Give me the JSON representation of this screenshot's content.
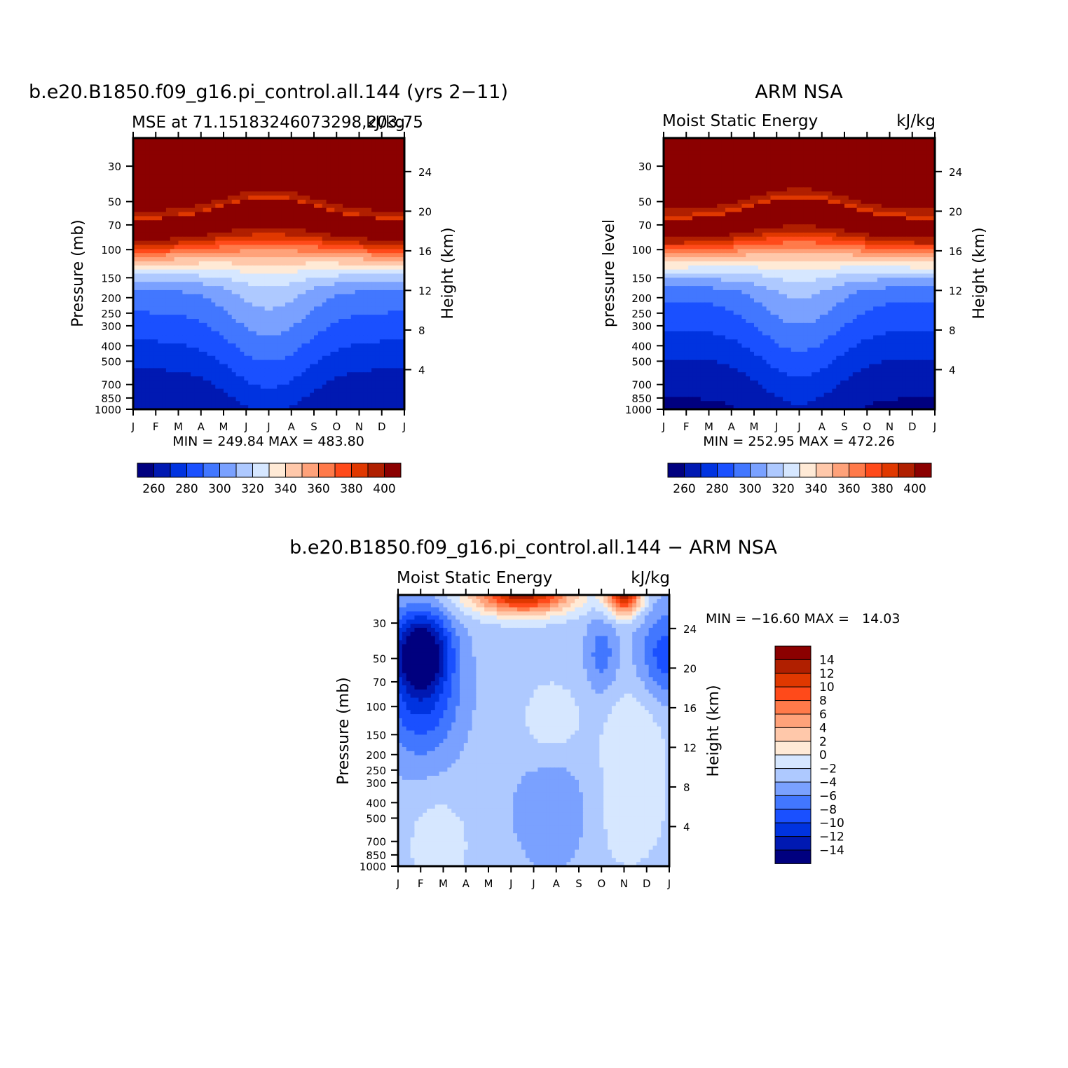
{
  "chart_data": [
    {
      "type": "contour",
      "title": "b.e20.B1850.f09_g16.pi_control.all.144 (yrs 2−11)",
      "left_subtitle": "MSE at 71.15183246073298,203.75",
      "right_subtitle": "kJ/kg",
      "ylabel": "Pressure (mb)",
      "ylabel_right": "Height (km)",
      "x_ticks": [
        "J",
        "F",
        "M",
        "A",
        "M",
        "J",
        "J",
        "A",
        "S",
        "O",
        "N",
        "D",
        "J"
      ],
      "y_ticks": [
        "30",
        "50",
        "70",
        "100",
        "150",
        "200",
        "250",
        "300",
        "400",
        "500",
        "700",
        "850",
        "1000"
      ],
      "y_right_ticks": [
        "24",
        "20",
        "16",
        "12",
        "8",
        "4"
      ],
      "stats": "MIN = 249.84 MAX = 483.80",
      "colorbar_labels": [
        "260",
        "280",
        "300",
        "320",
        "340",
        "360",
        "380",
        "400"
      ],
      "levels": [
        260,
        280,
        300,
        320,
        340,
        360,
        380,
        400
      ],
      "ylim_mb": [
        1000,
        20
      ]
    },
    {
      "type": "contour",
      "title": "ARM NSA",
      "left_subtitle": "Moist Static Energy",
      "right_subtitle": "kJ/kg",
      "ylabel": "pressure level",
      "ylabel_right": "Height (km)",
      "x_ticks": [
        "J",
        "F",
        "M",
        "A",
        "M",
        "J",
        "J",
        "A",
        "S",
        "O",
        "N",
        "D",
        "J"
      ],
      "y_ticks": [
        "30",
        "50",
        "70",
        "100",
        "150",
        "200",
        "250",
        "300",
        "400",
        "500",
        "700",
        "850",
        "1000"
      ],
      "y_right_ticks": [
        "24",
        "20",
        "16",
        "12",
        "8",
        "4"
      ],
      "stats": "MIN = 252.95 MAX = 472.26",
      "colorbar_labels": [
        "260",
        "280",
        "300",
        "320",
        "340",
        "360",
        "380",
        "400"
      ],
      "levels": [
        260,
        280,
        300,
        320,
        340,
        360,
        380,
        400
      ],
      "ylim_mb": [
        1000,
        20
      ]
    },
    {
      "type": "contour",
      "title": "b.e20.B1850.f09_g16.pi_control.all.144 − ARM NSA",
      "left_subtitle": "Moist Static Energy",
      "right_subtitle": "kJ/kg",
      "ylabel": "Pressure (mb)",
      "ylabel_right": "Height (km)",
      "x_ticks": [
        "J",
        "F",
        "M",
        "A",
        "M",
        "J",
        "J",
        "A",
        "S",
        "O",
        "N",
        "D",
        "J"
      ],
      "y_ticks": [
        "30",
        "50",
        "70",
        "100",
        "150",
        "200",
        "250",
        "300",
        "400",
        "500",
        "700",
        "850",
        "1000"
      ],
      "y_right_ticks": [
        "24",
        "20",
        "16",
        "12",
        "8",
        "4"
      ],
      "stats": "MIN = −16.60 MAX =   14.03",
      "colorbar_labels": [
        "14",
        "12",
        "10",
        "8",
        "6",
        "4",
        "2",
        "0",
        "−2",
        "−4",
        "−6",
        "−8",
        "−10",
        "−12",
        "−14"
      ],
      "levels": [
        -14,
        -12,
        -10,
        -8,
        -6,
        -4,
        -2,
        0,
        2,
        4,
        6,
        8,
        10,
        12,
        14
      ],
      "ylim_mb": [
        1000,
        20
      ]
    }
  ],
  "colors": {
    "mse_palette": [
      "#00007f",
      "#0019b2",
      "#0033e0",
      "#1a50ff",
      "#4277ff",
      "#7aa1ff",
      "#aec9ff",
      "#d6e7ff",
      "#ffead6",
      "#ffc8aa",
      "#ffa27a",
      "#ff7a4a",
      "#ff4a1a",
      "#e03800",
      "#b01f00",
      "#8b0000"
    ],
    "diff_palette": [
      "#8b0000",
      "#b01f00",
      "#e03800",
      "#ff4a1a",
      "#ff7a4a",
      "#ffa27a",
      "#ffc8aa",
      "#ffead6",
      "#d6e7ff",
      "#aec9ff",
      "#7aa1ff",
      "#4277ff",
      "#1a50ff",
      "#0033e0",
      "#0019b2",
      "#00007f"
    ]
  }
}
